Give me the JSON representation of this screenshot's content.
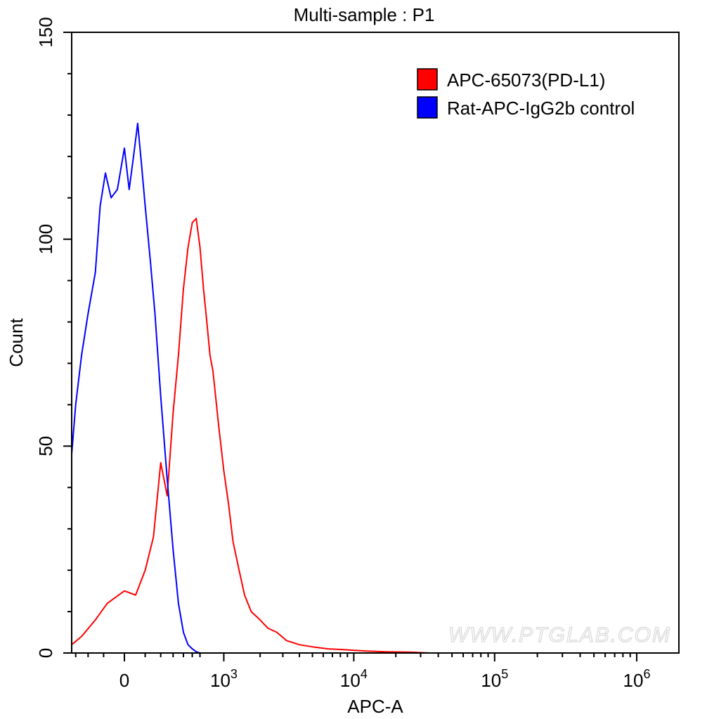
{
  "chart_data": {
    "type": "area",
    "title": "Multi-sample : P1",
    "xlabel": "APC-A",
    "ylabel": "Count",
    "ylim": [
      0,
      150
    ],
    "xscale": "biexponential",
    "xlim": [
      -700,
      1800000
    ],
    "x_tick_labels": [
      {
        "base": "0",
        "exp": "",
        "value": 0
      },
      {
        "base": "10",
        "exp": "3",
        "value": 1000
      },
      {
        "base": "10",
        "exp": "4",
        "value": 10000
      },
      {
        "base": "10",
        "exp": "5",
        "value": 100000
      },
      {
        "base": "10",
        "exp": "6",
        "value": 1000000
      }
    ],
    "y_ticks": [
      0,
      50,
      100,
      150
    ],
    "legend_position": "top-right",
    "series": [
      {
        "name": "APC-65073(PD-L1)",
        "color": "#ff0000",
        "x": [
          -600,
          -450,
          -350,
          -250,
          -150,
          -80,
          0,
          50,
          100,
          150,
          200,
          250,
          300,
          350,
          400,
          450,
          500,
          550,
          600,
          650,
          700,
          750,
          800,
          900,
          1000,
          1100,
          1200,
          1350,
          1500,
          1700,
          2000,
          2300,
          2700,
          3200,
          4000,
          5000,
          6500,
          8500,
          12000,
          17000,
          25000,
          35000
        ],
        "values": [
          0,
          1,
          2,
          4,
          8,
          12,
          15,
          14,
          20,
          28,
          46,
          38,
          58,
          72,
          88,
          98,
          104,
          105,
          98,
          88,
          80,
          72,
          68,
          55,
          44,
          36,
          27,
          20,
          14,
          10,
          8,
          6,
          5,
          3,
          2,
          1.5,
          1,
          0.8,
          0.5,
          0.3,
          0.2,
          0
        ]
      },
      {
        "name": "Rat-APC-IgG2b control",
        "color": "#0000ff",
        "x": [
          -650,
          -600,
          -550,
          -500,
          -450,
          -400,
          -350,
          -300,
          -250,
          -200,
          -150,
          -120,
          -90,
          -60,
          -30,
          0,
          20,
          40,
          60,
          80,
          100,
          130,
          160,
          200,
          250,
          300,
          350,
          400,
          450,
          500,
          550,
          600
        ],
        "values": [
          8,
          12,
          18,
          25,
          30,
          38,
          48,
          60,
          72,
          82,
          92,
          108,
          116,
          110,
          112,
          122,
          112,
          120,
          128,
          118,
          108,
          95,
          82,
          62,
          42,
          25,
          12,
          5,
          2,
          1,
          0.3,
          0
        ]
      }
    ]
  },
  "watermark": "WWW.PTGLAB.COM"
}
